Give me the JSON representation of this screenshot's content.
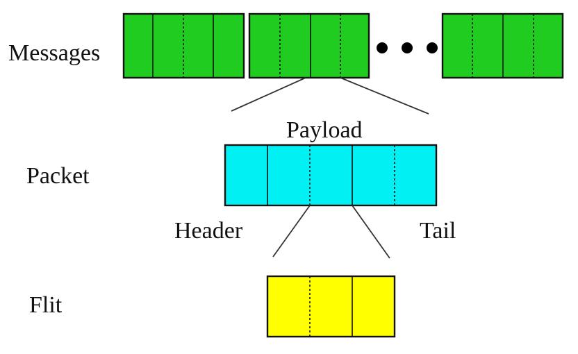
{
  "diagram": {
    "labels": {
      "messages": "Messages",
      "packet": "Packet",
      "flit": "Flit",
      "payload": "Payload",
      "header": "Header",
      "tail": "Tail"
    },
    "colors": {
      "message_fill": "#1fcc1f",
      "packet_fill": "#00f0f4",
      "flit_fill": "#ffff00",
      "outline": "#111111",
      "dot": "#000000"
    },
    "message_count_visible": 3,
    "ellipsis_dots": 3,
    "packet_flits": 5,
    "flit_phits": 3
  }
}
